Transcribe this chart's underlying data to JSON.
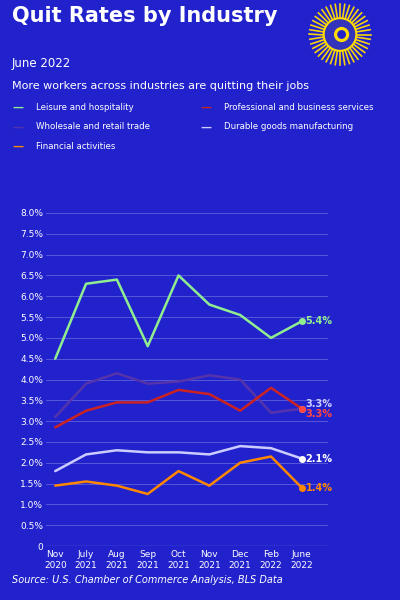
{
  "title": "Quit Rates by Industry",
  "subtitle": "June 2022",
  "description": "More workers across industries are quitting their jobs",
  "source": "Source: U.S. Chamber of Commerce Analysis, BLS Data",
  "bg_color": "#2222cc",
  "text_color": "#ffffff",
  "x_labels": [
    "Nov\n2020",
    "July\n2021",
    "Aug\n2021",
    "Sep\n2021",
    "Oct\n2021",
    "Nov\n2021",
    "Dec\n2021",
    "Feb\n2022",
    "June\n2022"
  ],
  "series": [
    {
      "name": "Leisure and hospitality",
      "color": "#90ee90",
      "data": [
        4.5,
        6.3,
        6.4,
        4.8,
        6.5,
        5.8,
        5.55,
        5.0,
        5.4
      ],
      "end_label": "5.4%",
      "end_label_color": "#90ee90"
    },
    {
      "name": "Wholesale and retail trade",
      "color": "#5533aa",
      "data": [
        3.1,
        3.9,
        4.15,
        3.9,
        3.95,
        4.1,
        4.0,
        3.2,
        3.3
      ],
      "end_label": "3.3%",
      "end_label_color": "#ccccff"
    },
    {
      "name": "Professional and business services",
      "color": "#cc2222",
      "data": [
        2.85,
        3.25,
        3.45,
        3.45,
        3.75,
        3.65,
        3.25,
        3.8,
        3.3
      ],
      "end_label": "3.3%",
      "end_label_color": "#ff4444"
    },
    {
      "name": "Durable goods manufacturing",
      "color": "#ccccff",
      "data": [
        1.8,
        2.2,
        2.3,
        2.25,
        2.25,
        2.2,
        2.4,
        2.35,
        2.1
      ],
      "end_label": "2.1%",
      "end_label_color": "#ffffff"
    },
    {
      "name": "Financial activities",
      "color": "#ff8800",
      "data": [
        1.45,
        1.55,
        1.45,
        1.25,
        1.8,
        1.45,
        2.0,
        2.15,
        1.4
      ],
      "end_label": "1.4%",
      "end_label_color": "#ff8800"
    }
  ],
  "legend": [
    {
      "name": "Leisure and hospitality",
      "color": "#90ee90"
    },
    {
      "name": "Professional and business services",
      "color": "#cc2222"
    },
    {
      "name": "Wholesale and retail trade",
      "color": "#5533aa"
    },
    {
      "name": "Durable goods manufacturing",
      "color": "#ccccff"
    },
    {
      "name": "Financial activities",
      "color": "#ff8800"
    }
  ],
  "ylim": [
    0,
    8.0
  ],
  "yticks": [
    0,
    0.5,
    1.0,
    1.5,
    2.0,
    2.5,
    3.0,
    3.5,
    4.0,
    4.5,
    5.0,
    5.5,
    6.0,
    6.5,
    7.0,
    7.5,
    8.0
  ],
  "ytick_labels": [
    "0",
    "0.5%",
    "1.0%",
    "1.5%",
    "2.0%",
    "2.5%",
    "3.0%",
    "3.5%",
    "4.0%",
    "4.5%",
    "5.0%",
    "5.5%",
    "6.0%",
    "6.5%",
    "7.0%",
    "7.5%",
    "8.0%"
  ]
}
